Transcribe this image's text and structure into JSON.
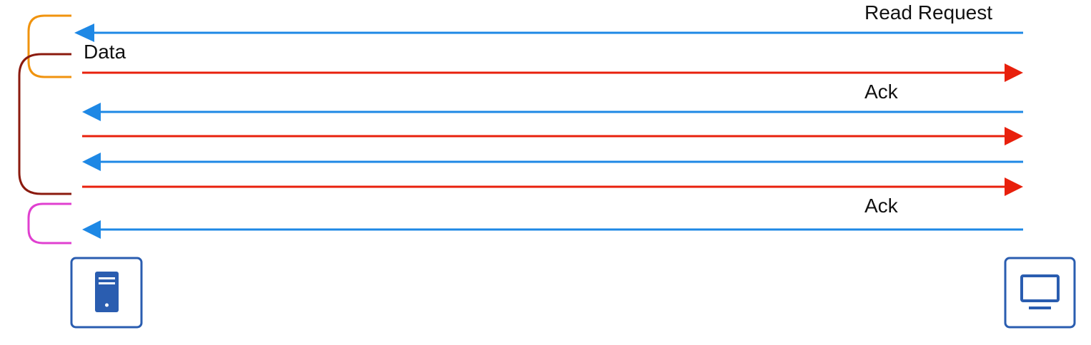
{
  "labels": {
    "read_request": "Read Request",
    "data": "Data",
    "ack_first": "Ack",
    "ack_last": "Ack"
  },
  "colors": {
    "to_server": "#1e88e5",
    "to_client": "#e8200c",
    "bracket_request": "#f0930e",
    "bracket_transfer": "#8b1a0e",
    "bracket_ack": "#e040d0",
    "device_border": "#2a5db0",
    "device_fill": "#2a5db0"
  },
  "messages": [
    {
      "direction": "to-server",
      "label_key": "read_request"
    },
    {
      "direction": "to-client",
      "label_key": "data"
    },
    {
      "direction": "to-server",
      "label_key": "ack_first"
    },
    {
      "direction": "to-client",
      "label_key": ""
    },
    {
      "direction": "to-server",
      "label_key": ""
    },
    {
      "direction": "to-client",
      "label_key": ""
    },
    {
      "direction": "to-server",
      "label_key": "ack_last"
    }
  ],
  "devices": {
    "left": {
      "icon": "server-icon"
    },
    "right": {
      "icon": "monitor-icon"
    }
  }
}
